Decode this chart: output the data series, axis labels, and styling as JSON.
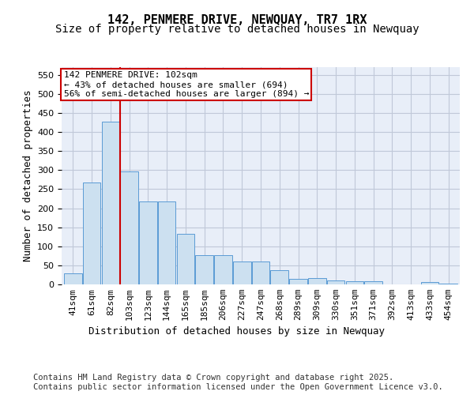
{
  "title": "142, PENMERE DRIVE, NEWQUAY, TR7 1RX",
  "subtitle": "Size of property relative to detached houses in Newquay",
  "xlabel": "Distribution of detached houses by size in Newquay",
  "ylabel": "Number of detached properties",
  "categories": [
    "41sqm",
    "61sqm",
    "82sqm",
    "103sqm",
    "123sqm",
    "144sqm",
    "165sqm",
    "185sqm",
    "206sqm",
    "227sqm",
    "247sqm",
    "268sqm",
    "289sqm",
    "309sqm",
    "330sqm",
    "351sqm",
    "371sqm",
    "392sqm",
    "413sqm",
    "433sqm",
    "454sqm"
  ],
  "values": [
    30,
    268,
    428,
    297,
    217,
    217,
    133,
    77,
    77,
    60,
    60,
    38,
    14,
    16,
    10,
    9,
    9,
    0,
    0,
    6,
    2
  ],
  "bar_color": "#cce0f0",
  "bar_edge_color": "#5b9bd5",
  "grid_color": "#c0c8d8",
  "background_color": "#e8eef8",
  "vline_x_index": 2.5,
  "vline_color": "#cc0000",
  "annotation_text": "142 PENMERE DRIVE: 102sqm\n← 43% of detached houses are smaller (694)\n56% of semi-detached houses are larger (894) →",
  "annotation_box_color": "#cc0000",
  "ylim": [
    0,
    570
  ],
  "yticks": [
    0,
    50,
    100,
    150,
    200,
    250,
    300,
    350,
    400,
    450,
    500,
    550
  ],
  "footer_text": "Contains HM Land Registry data © Crown copyright and database right 2025.\nContains public sector information licensed under the Open Government Licence v3.0.",
  "title_fontsize": 11,
  "subtitle_fontsize": 10,
  "axis_label_fontsize": 9,
  "tick_fontsize": 8,
  "annotation_fontsize": 8,
  "footer_fontsize": 7.5
}
